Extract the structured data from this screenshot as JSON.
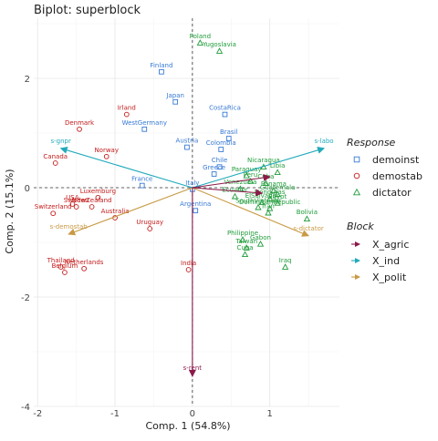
{
  "chart_data": {
    "type": "scatter",
    "title": "Biplot: superblock",
    "xlabel": "Comp. 1 (54.8%)",
    "ylabel": "Comp. 2 (15.1%)",
    "xlim": [
      -2.05,
      1.9
    ],
    "ylim": [
      -4.0,
      3.1
    ],
    "x_ticks": [
      -2,
      -1,
      0,
      1
    ],
    "y_ticks": [
      -4,
      -2,
      0,
      2
    ],
    "grid": true,
    "legend_position": "right",
    "colors": {
      "demoinst": "#3779d6",
      "demostab": "#c41b1b",
      "dictator": "#1f9c3a",
      "X_agric": "#8b1a4a",
      "X_ind": "#22aabb",
      "X_polit": "#c99a44"
    },
    "legend_response": {
      "title": "Response",
      "items": [
        {
          "key": "demoinst",
          "label": "demoinst",
          "shape": "square"
        },
        {
          "key": "demostab",
          "label": "demostab",
          "shape": "circle"
        },
        {
          "key": "dictator",
          "label": "dictator",
          "shape": "triangle"
        }
      ]
    },
    "legend_block": {
      "title": "Block",
      "items": [
        {
          "key": "X_agric",
          "label": "X_agric"
        },
        {
          "key": "X_ind",
          "label": "X_ind"
        },
        {
          "key": "X_polit",
          "label": "X_polit"
        }
      ]
    },
    "points": [
      {
        "label": "Finland",
        "x": -0.4,
        "y": 2.12,
        "group": "demoinst"
      },
      {
        "label": "Japan",
        "x": -0.22,
        "y": 1.57,
        "group": "demoinst"
      },
      {
        "label": "CostaRica",
        "x": 0.42,
        "y": 1.34,
        "group": "demoinst"
      },
      {
        "label": "WestGermany",
        "x": -0.62,
        "y": 1.07,
        "group": "demoinst"
      },
      {
        "label": "Brasil",
        "x": 0.47,
        "y": 0.9,
        "group": "demoinst"
      },
      {
        "label": "Austria",
        "x": -0.07,
        "y": 0.74,
        "group": "demoinst"
      },
      {
        "label": "Colombia",
        "x": 0.37,
        "y": 0.7,
        "group": "demoinst"
      },
      {
        "label": "Chile",
        "x": 0.35,
        "y": 0.38,
        "group": "demoinst"
      },
      {
        "label": "Greece",
        "x": 0.28,
        "y": 0.25,
        "group": "demoinst"
      },
      {
        "label": "France",
        "x": -0.65,
        "y": 0.04,
        "group": "demoinst"
      },
      {
        "label": "Italy",
        "x": 0.0,
        "y": -0.03,
        "group": "demoinst"
      },
      {
        "label": "Argentina",
        "x": 0.04,
        "y": -0.42,
        "group": "demoinst"
      },
      {
        "label": "Irland",
        "x": -0.85,
        "y": 1.34,
        "group": "demostab"
      },
      {
        "label": "Denmark",
        "x": -1.46,
        "y": 1.07,
        "group": "demostab"
      },
      {
        "label": "Canada",
        "x": -1.77,
        "y": 0.45,
        "group": "demostab"
      },
      {
        "label": "Norway",
        "x": -1.11,
        "y": 0.57,
        "group": "demostab"
      },
      {
        "label": "Luxemburg",
        "x": -1.22,
        "y": -0.18,
        "group": "demostab"
      },
      {
        "label": "USA",
        "x": -1.55,
        "y": -0.3,
        "group": "demostab"
      },
      {
        "label": "Sweden",
        "x": -1.5,
        "y": -0.35,
        "group": "demostab"
      },
      {
        "label": "NewZealand",
        "x": -1.3,
        "y": -0.35,
        "group": "demostab"
      },
      {
        "label": "Switzerland",
        "x": -1.8,
        "y": -0.47,
        "group": "demostab"
      },
      {
        "label": "Australia",
        "x": -1.0,
        "y": -0.55,
        "group": "demostab"
      },
      {
        "label": "Uruguay",
        "x": -0.55,
        "y": -0.75,
        "group": "demostab"
      },
      {
        "label": "India",
        "x": -0.05,
        "y": -1.5,
        "group": "demostab"
      },
      {
        "label": "Thailand",
        "x": -1.7,
        "y": -1.45,
        "group": "demostab"
      },
      {
        "label": "Netherlands",
        "x": -1.4,
        "y": -1.48,
        "group": "demostab"
      },
      {
        "label": "Belgium",
        "x": -1.65,
        "y": -1.55,
        "group": "demostab"
      },
      {
        "label": "Poland",
        "x": 0.1,
        "y": 2.65,
        "group": "dictator"
      },
      {
        "label": "Yugoslavia",
        "x": 0.35,
        "y": 2.5,
        "group": "dictator"
      },
      {
        "label": "Nicaragua",
        "x": 0.92,
        "y": 0.38,
        "group": "dictator"
      },
      {
        "label": "Libia",
        "x": 1.1,
        "y": 0.28,
        "group": "dictator"
      },
      {
        "label": "Paraguay",
        "x": 0.7,
        "y": 0.22,
        "group": "dictator"
      },
      {
        "label": "Peru",
        "x": 0.75,
        "y": 0.12,
        "group": "dictator"
      },
      {
        "label": "Cuba",
        "x": 0.95,
        "y": 0.08,
        "group": "dictator"
      },
      {
        "label": "Venezuela",
        "x": 0.62,
        "y": -0.02,
        "group": "dictator"
      },
      {
        "label": "Panama",
        "x": 1.05,
        "y": -0.05,
        "group": "dictator"
      },
      {
        "label": "Guatemala",
        "x": 1.1,
        "y": -0.12,
        "group": "dictator"
      },
      {
        "label": "Ecuador",
        "x": 0.55,
        "y": -0.16,
        "group": "dictator"
      },
      {
        "label": "Honduras",
        "x": 1.0,
        "y": -0.2,
        "group": "dictator"
      },
      {
        "label": "ElSalvador",
        "x": 0.9,
        "y": -0.27,
        "group": "dictator"
      },
      {
        "label": "DominicanRepublic",
        "x": 1.0,
        "y": -0.38,
        "group": "dictator"
      },
      {
        "label": "Egypt",
        "x": 1.1,
        "y": -0.28,
        "group": "dictator"
      },
      {
        "label": "SouthVietnam",
        "x": 0.85,
        "y": -0.36,
        "group": "dictator"
      },
      {
        "label": "Iran",
        "x": 0.98,
        "y": -0.46,
        "group": "dictator"
      },
      {
        "label": "Bolivia",
        "x": 1.48,
        "y": -0.57,
        "group": "dictator"
      },
      {
        "label": "Philippine",
        "x": 0.65,
        "y": -0.95,
        "group": "dictator"
      },
      {
        "label": "Gabon",
        "x": 0.88,
        "y": -1.03,
        "group": "dictator"
      },
      {
        "label": "Taiwan",
        "x": 0.7,
        "y": -1.1,
        "group": "dictator"
      },
      {
        "label": "Cuba",
        "x": 0.68,
        "y": -1.22,
        "group": "dictator"
      },
      {
        "label": "Iraq",
        "x": 1.2,
        "y": -1.45,
        "group": "dictator"
      }
    ],
    "arrows": [
      {
        "label": "s-gnpr",
        "x": -1.7,
        "y": 0.72,
        "block": "X_ind"
      },
      {
        "label": "s-labo",
        "x": 1.7,
        "y": 0.72,
        "block": "X_ind"
      },
      {
        "label": "s-demostab",
        "x": -1.6,
        "y": -0.85,
        "block": "X_polit"
      },
      {
        "label": "s-dictator",
        "x": 1.5,
        "y": -0.88,
        "block": "X_polit"
      },
      {
        "label": "s-rent",
        "x": 0.0,
        "y": -3.45,
        "block": "X_agric"
      },
      {
        "label": "",
        "x": 1.0,
        "y": 0.2,
        "block": "X_agric"
      },
      {
        "label": "",
        "x": 0.9,
        "y": -0.1,
        "block": "X_agric"
      }
    ]
  }
}
